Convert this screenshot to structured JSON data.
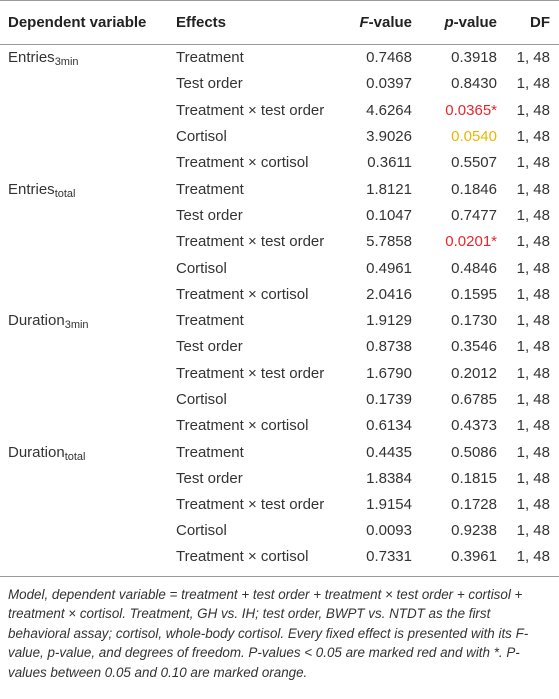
{
  "table": {
    "header": [
      {
        "rest": "Dependent variable"
      },
      {
        "rest": "Effects"
      },
      {
        "italic": "F",
        "rest": "-value"
      },
      {
        "italic": "p",
        "rest": "-value"
      },
      {
        "rest": "DF"
      }
    ],
    "groups": [
      {
        "label": {
          "main": "Entries",
          "sub": "3min"
        },
        "rows": [
          {
            "effect": "Treatment",
            "f": "0.7468",
            "p": "0.3918",
            "df": "1, 48"
          },
          {
            "effect": "Test order",
            "f": "0.0397",
            "p": "0.8430",
            "df": "1, 48"
          },
          {
            "effect": "Treatment × test order",
            "f": "4.6264",
            "p": "0.0365*",
            "p_color": "#e8262b",
            "df": "1, 48"
          },
          {
            "effect": "Cortisol",
            "f": "3.9026",
            "p": "0.0540",
            "p_color": "#f0b400",
            "df": "1, 48"
          },
          {
            "effect": "Treatment × cortisol",
            "f": "0.3611",
            "p": "0.5507",
            "df": "1, 48"
          }
        ]
      },
      {
        "label": {
          "main": "Entries",
          "sub": "total"
        },
        "rows": [
          {
            "effect": "Treatment",
            "f": "1.8121",
            "p": "0.1846",
            "df": "1, 48"
          },
          {
            "effect": "Test order",
            "f": "0.1047",
            "p": "0.7477",
            "df": "1, 48"
          },
          {
            "effect": "Treatment × test order",
            "f": "5.7858",
            "p": "0.0201*",
            "p_color": "#e8262b",
            "df": "1, 48"
          },
          {
            "effect": "Cortisol",
            "f": "0.4961",
            "p": "0.4846",
            "df": "1, 48"
          },
          {
            "effect": "Treatment × cortisol",
            "f": "2.0416",
            "p": "0.1595",
            "df": "1, 48"
          }
        ]
      },
      {
        "label": {
          "main": "Duration",
          "sub": "3min"
        },
        "rows": [
          {
            "effect": "Treatment",
            "f": "1.9129",
            "p": "0.1730",
            "df": "1, 48"
          },
          {
            "effect": "Test order",
            "f": "0.8738",
            "p": "0.3546",
            "df": "1, 48"
          },
          {
            "effect": "Treatment × test order",
            "f": "1.6790",
            "p": "0.2012",
            "df": "1, 48"
          },
          {
            "effect": "Cortisol",
            "f": "0.1739",
            "p": "0.6785",
            "df": "1, 48"
          },
          {
            "effect": "Treatment × cortisol",
            "f": "0.6134",
            "p": "0.4373",
            "df": "1, 48"
          }
        ]
      },
      {
        "label": {
          "main": "Duration",
          "sub": "total"
        },
        "rows": [
          {
            "effect": "Treatment",
            "f": "0.4435",
            "p": "0.5086",
            "df": "1, 48"
          },
          {
            "effect": "Test order",
            "f": "1.8384",
            "p": "0.1815",
            "df": "1, 48"
          },
          {
            "effect": "Treatment × test order",
            "f": "1.9154",
            "p": "0.1728",
            "df": "1, 48"
          },
          {
            "effect": "Cortisol",
            "f": "0.0093",
            "p": "0.9238",
            "df": "1, 48"
          },
          {
            "effect": "Treatment × cortisol",
            "f": "0.7331",
            "p": "0.3961",
            "df": "1, 48"
          }
        ]
      }
    ],
    "footnote": "Model, dependent variable = treatment + test order + treatment × test order + cortisol + treatment × cortisol. Treatment, GH vs. IH; test order, BWPT vs. NTDT as the first behavioral assay; cortisol, whole-body cortisol. Every fixed effect is presented with its F-value, p-value, and degrees of freedom. P-values < 0.05 are marked red and with *. P-values between 0.05 and 0.10 are marked orange."
  }
}
